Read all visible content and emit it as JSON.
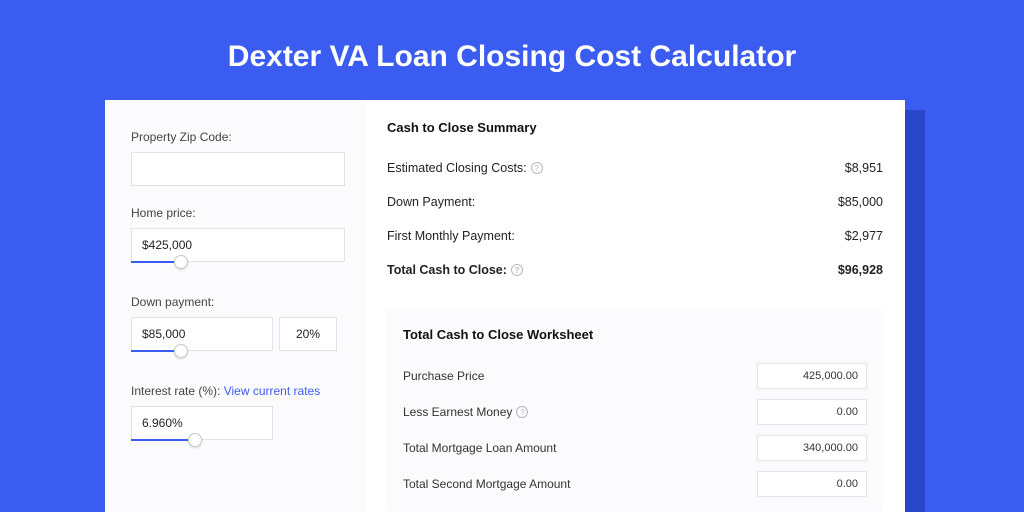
{
  "page": {
    "title": "Dexter VA Loan Closing Cost Calculator",
    "background_color": "#3a5cf0",
    "shadow_color": "#2a47c9",
    "card_color": "#ffffff",
    "sidebar_color": "#fbfbfd",
    "title_color": "#ffffff",
    "title_fontsize": 30
  },
  "sidebar": {
    "zip": {
      "label": "Property Zip Code:",
      "value": ""
    },
    "price": {
      "label": "Home price:",
      "value": "$425,000",
      "slider_pct": 20
    },
    "down": {
      "label": "Down payment:",
      "value": "$85,000",
      "pct": "20%",
      "slider_pct": 30
    },
    "rate": {
      "label": "Interest rate (%):",
      "link": "View current rates",
      "value": "6.960%",
      "slider_pct": 40
    }
  },
  "summary": {
    "title": "Cash to Close Summary",
    "rows": [
      {
        "label": "Estimated Closing Costs:",
        "help": true,
        "value": "$8,951",
        "bold": false
      },
      {
        "label": "Down Payment:",
        "help": false,
        "value": "$85,000",
        "bold": false
      },
      {
        "label": "First Monthly Payment:",
        "help": false,
        "value": "$2,977",
        "bold": false
      },
      {
        "label": "Total Cash to Close:",
        "help": true,
        "value": "$96,928",
        "bold": true
      }
    ]
  },
  "worksheet": {
    "title": "Total Cash to Close Worksheet",
    "rows": [
      {
        "label": "Purchase Price",
        "help": false,
        "value": "425,000.00"
      },
      {
        "label": "Less Earnest Money",
        "help": true,
        "value": "0.00"
      },
      {
        "label": "Total Mortgage Loan Amount",
        "help": false,
        "value": "340,000.00"
      },
      {
        "label": "Total Second Mortgage Amount",
        "help": false,
        "value": "0.00"
      }
    ]
  },
  "styling": {
    "border_color": "#e3e3e8",
    "help_icon_color": "#b8b8c0",
    "link_color": "#3a5cf0",
    "slider_color": "#3a5cf0",
    "text_color": "#222222",
    "label_color": "#444444"
  }
}
